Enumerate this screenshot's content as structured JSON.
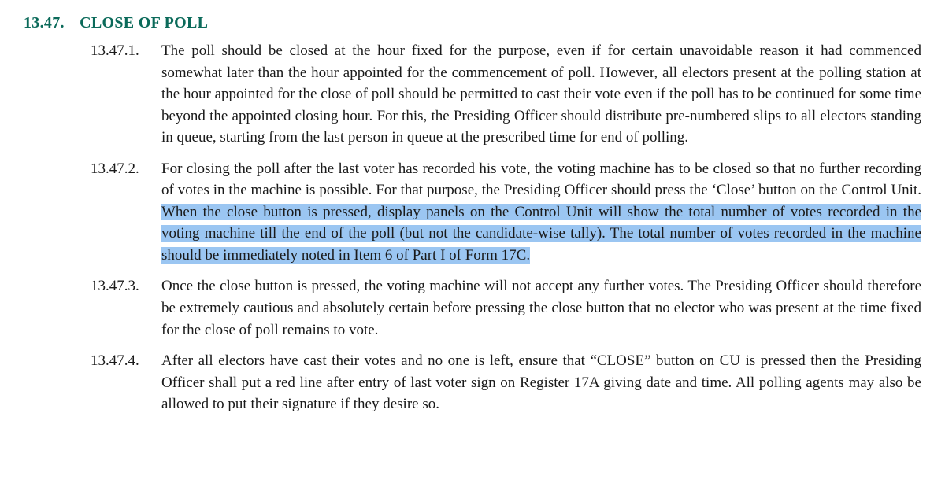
{
  "colors": {
    "heading": "#0b6a5a",
    "text": "#1a1a1a",
    "highlight_bg": "#9bc6f2",
    "page_bg": "#ffffff"
  },
  "typography": {
    "font_family": "Times New Roman",
    "heading_fontsize_pt": 15,
    "body_fontsize_pt": 14,
    "line_height": 1.45,
    "text_align": "justify"
  },
  "section": {
    "number": "13.47.",
    "title": "CLOSE OF POLL"
  },
  "clauses": [
    {
      "num": "13.47.1.",
      "text": "The poll should be closed at the hour fixed for the purpose, even if for certain unavoidable reason it had commenced somewhat later than the hour appointed for the commencement of poll. However, all electors present at the polling station at the hour appointed for the close of poll should be permitted to cast their vote even if the poll has to be continued for some time beyond the appointed closing hour. For this, the Presiding Officer should distribute pre-numbered slips to all electors standing in queue, starting from the last person in queue at the prescribed time for end of polling."
    },
    {
      "num": "13.47.2.",
      "pre": "For closing the poll after the last voter has recorded his vote, the voting machine has to be closed so that no further recording of votes in the machine is possible. For that purpose, the Presiding Officer should press the ‘Close’ button on the Control Unit. ",
      "hl": "When the close button is pressed, display panels on the Control Unit will show the total number of votes recorded in the voting machine till the end of the poll (but not the candidate-wise tally). The total number of votes recorded in the machine should be immediately noted in Item 6 of Part I of Form 17C."
    },
    {
      "num": "13.47.3.",
      "text": "Once the close button is pressed, the voting machine will not accept any further votes. The Presiding Officer should therefore be extremely cautious and absolutely certain before pressing the close button that no elector who was present at the time fixed for the close of poll remains to vote."
    },
    {
      "num": "13.47.4.",
      "text": "After all electors have cast their votes and no one is left, ensure that “CLOSE” button on CU is pressed then the Presiding Officer shall put a red line after entry of last voter sign on Register 17A giving date and time. All polling agents may also be allowed to put their signature if they desire so."
    }
  ]
}
